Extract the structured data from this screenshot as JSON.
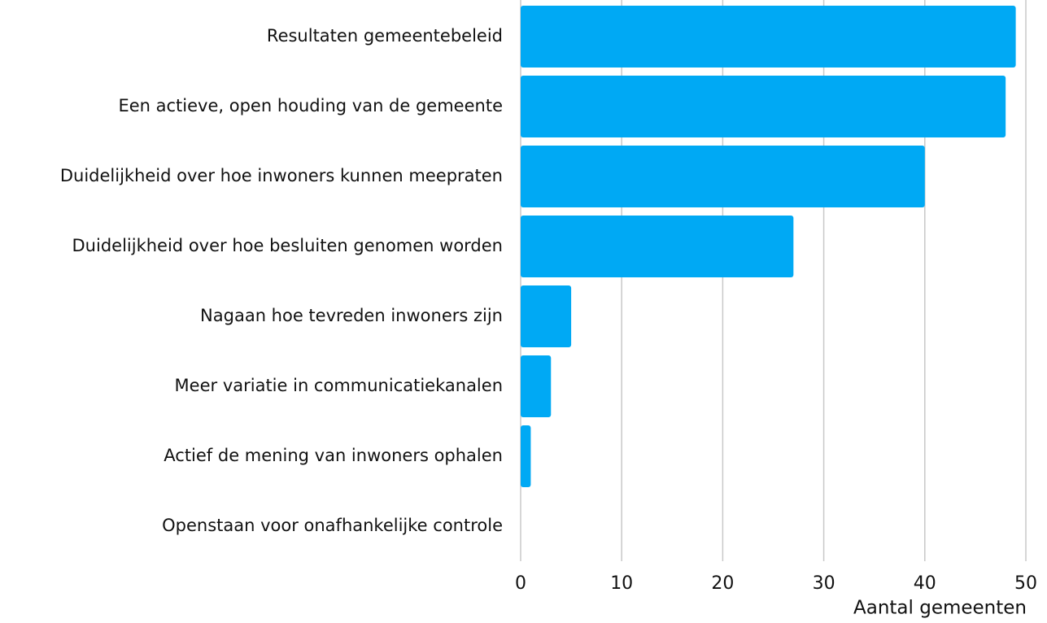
{
  "chart_data": {
    "type": "hbar",
    "categories": [
      "Resultaten gemeentebeleid",
      "Een actieve, open houding van de gemeente",
      "Duidelijkheid over hoe inwoners kunnen meepraten",
      "Duidelijkheid over hoe besluiten genomen worden",
      "Nagaan hoe tevreden inwoners zijn",
      "Meer variatie in communicatiekanalen",
      "Actief de mening van inwoners ophalen",
      "Openstaan voor onafhankelijke controle"
    ],
    "values": [
      49,
      48,
      40,
      27,
      5,
      3,
      1,
      0
    ],
    "color": "#00a9f4",
    "x_label": "Aantal gemeenten",
    "xlim": [
      0,
      50
    ],
    "xticks": [
      0,
      10,
      20,
      30,
      40,
      50
    ],
    "grid": true
  }
}
